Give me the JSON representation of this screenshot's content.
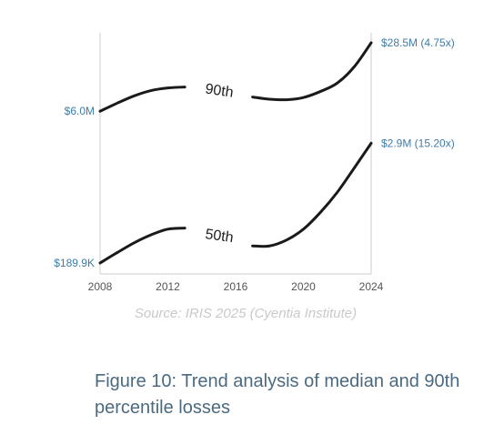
{
  "chart_data": {
    "type": "line",
    "x": [
      2008,
      2009,
      2010,
      2011,
      2012,
      2013,
      2014,
      2015,
      2016,
      2017,
      2018,
      2019,
      2020,
      2021,
      2022,
      2023,
      2024
    ],
    "series": [
      {
        "name": "90th",
        "values": [
          6.0,
          7.2,
          8.5,
          9.6,
          10.2,
          10.4,
          10.2,
          9.8,
          9.0,
          8.3,
          7.9,
          7.8,
          8.2,
          9.4,
          11.4,
          16.5,
          28.5
        ],
        "start_label": "$6.0M",
        "end_label": "$28.5M (4.75x)"
      },
      {
        "name": "50th",
        "values": [
          0.1899,
          0.24,
          0.3,
          0.36,
          0.41,
          0.42,
          0.4,
          0.36,
          0.31,
          0.28,
          0.28,
          0.32,
          0.41,
          0.6,
          0.95,
          1.65,
          2.9
        ],
        "start_label": "$189.9K",
        "end_label": "$2.9M (15.20x)"
      }
    ],
    "x_ticks": [
      "2008",
      "2012",
      "2016",
      "2020",
      "2024"
    ],
    "xlim": [
      2008,
      2024
    ],
    "yscale": "log",
    "grid": false,
    "colors": {
      "line": "#1a1a1a",
      "labels": "#3e7ca8",
      "axis": "#cccccc"
    }
  },
  "source": "Source: IRIS 2025 (Cyentia Institute)",
  "caption": {
    "line1": "Figure 10: Trend analysis of median and 90th",
    "line2": "percentile losses"
  }
}
